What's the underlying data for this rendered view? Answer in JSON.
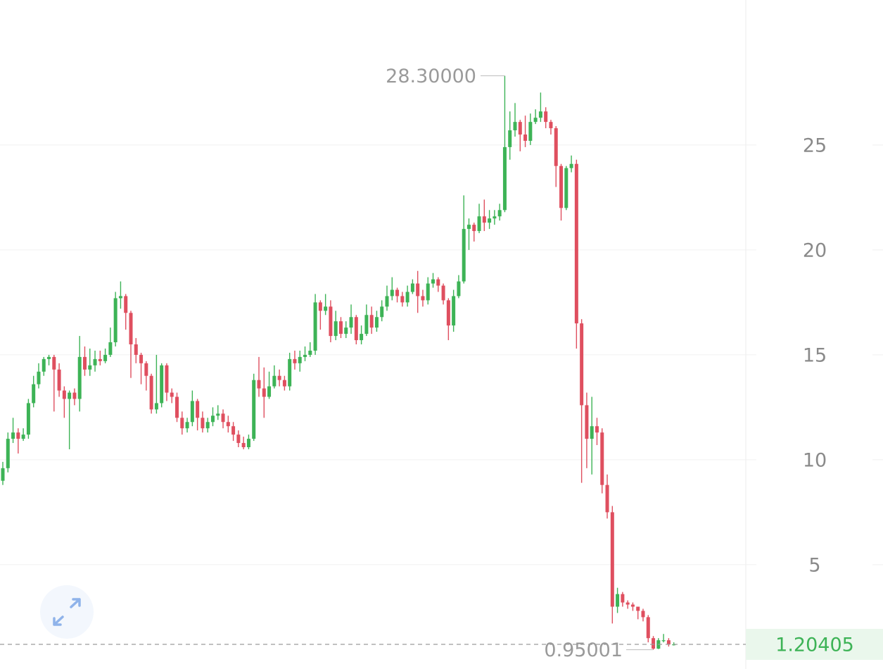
{
  "chart_data": {
    "type": "candlestick",
    "open": [
      9.0,
      9.6,
      11.0,
      11.3,
      11.0,
      11.2,
      12.7,
      13.6,
      14.2,
      14.8,
      14.9,
      14.3,
      13.3,
      12.9,
      13.2,
      12.9,
      14.9,
      14.3,
      14.5,
      14.8,
      14.7,
      15.0,
      15.6,
      17.7,
      17.8,
      17.0,
      15.5,
      15.0,
      14.6,
      14.0,
      12.4,
      12.7,
      14.5,
      13.2,
      13.0,
      12.0,
      11.5,
      11.8,
      12.8,
      12.0,
      11.5,
      11.8,
      12.1,
      12.2,
      11.8,
      11.6,
      11.2,
      10.8,
      10.6,
      11.0,
      13.8,
      13.4,
      13.0,
      13.5,
      14.0,
      13.8,
      13.5,
      14.8,
      14.6,
      14.9,
      15.0,
      15.2,
      17.5,
      17.1,
      17.3,
      15.9,
      16.6,
      16.0,
      16.3,
      16.8,
      15.7,
      16.0,
      16.9,
      16.3,
      16.8,
      17.3,
      17.8,
      18.1,
      17.8,
      17.5,
      18.0,
      18.4,
      17.8,
      17.6,
      18.4,
      18.6,
      18.3,
      17.6,
      16.4,
      17.8,
      18.5,
      21.0,
      21.2,
      20.9,
      21.6,
      21.3,
      21.5,
      21.6,
      21.9,
      24.9,
      25.7,
      26.1,
      25.5,
      25.2,
      26.1,
      26.3,
      26.6,
      26.1,
      25.8,
      24.0,
      22.0,
      23.9,
      24.1,
      16.5,
      12.6,
      11.0,
      11.6,
      11.3,
      8.8,
      7.5,
      3.0,
      3.6,
      3.2,
      3.1,
      3.0,
      2.8,
      2.5,
      1.5,
      1.0,
      1.4,
      1.4,
      1.2
    ],
    "high": [
      9.9,
      11.3,
      12.0,
      11.5,
      11.5,
      12.9,
      14.0,
      14.6,
      14.9,
      15.0,
      15.0,
      14.6,
      13.5,
      13.3,
      13.4,
      15.9,
      15.4,
      15.3,
      15.2,
      15.2,
      15.3,
      16.3,
      18.0,
      18.5,
      17.9,
      17.1,
      15.8,
      15.1,
      14.7,
      14.1,
      15.0,
      14.6,
      14.6,
      13.4,
      13.2,
      12.3,
      12.0,
      13.3,
      12.9,
      12.3,
      12.0,
      12.5,
      12.6,
      12.4,
      12.1,
      11.8,
      11.4,
      11.1,
      11.2,
      14.1,
      14.9,
      14.4,
      14.2,
      14.5,
      14.3,
      14.0,
      15.1,
      15.2,
      15.2,
      15.4,
      15.6,
      17.9,
      17.6,
      17.9,
      17.6,
      17.1,
      16.8,
      16.6,
      17.4,
      16.9,
      16.4,
      17.4,
      17.3,
      17.1,
      17.6,
      18.3,
      18.7,
      18.2,
      18.0,
      18.3,
      18.6,
      19.0,
      18.1,
      18.7,
      18.9,
      18.7,
      18.4,
      17.7,
      18.1,
      18.8,
      22.6,
      21.5,
      21.3,
      22.2,
      22.4,
      21.9,
      21.9,
      22.2,
      28.3,
      26.6,
      27.0,
      26.2,
      26.4,
      26.5,
      26.7,
      27.5,
      26.8,
      26.2,
      25.9,
      24.1,
      24.0,
      24.5,
      24.3,
      16.7,
      13.2,
      13.0,
      12.0,
      11.5,
      9.3,
      7.8,
      3.9,
      3.7,
      3.3,
      3.2,
      3.0,
      2.9,
      2.6,
      1.6,
      1.5,
      1.7,
      1.5,
      1.3
    ],
    "low": [
      8.8,
      9.4,
      10.8,
      10.3,
      10.9,
      11.0,
      12.5,
      13.4,
      14.0,
      14.5,
      12.3,
      13.0,
      12.0,
      10.5,
      12.6,
      12.3,
      14.0,
      14.0,
      14.2,
      14.5,
      14.6,
      14.9,
      15.4,
      17.2,
      16.2,
      13.9,
      14.6,
      13.6,
      13.3,
      12.2,
      12.2,
      12.5,
      12.8,
      12.7,
      11.8,
      11.2,
      11.3,
      11.6,
      11.4,
      11.3,
      11.3,
      11.6,
      11.9,
      11.5,
      11.3,
      10.9,
      10.6,
      10.5,
      10.5,
      10.9,
      13.0,
      12.0,
      12.9,
      13.4,
      13.5,
      13.3,
      13.3,
      14.3,
      14.2,
      14.7,
      14.9,
      15.0,
      16.2,
      16.9,
      15.6,
      15.7,
      15.8,
      15.8,
      16.0,
      15.5,
      15.5,
      15.9,
      16.0,
      16.1,
      16.6,
      17.1,
      17.6,
      17.5,
      17.3,
      17.3,
      17.9,
      17.0,
      17.3,
      17.4,
      18.2,
      18.0,
      17.4,
      15.7,
      16.1,
      17.7,
      18.4,
      20.0,
      20.4,
      20.8,
      20.9,
      21.0,
      21.2,
      21.4,
      21.8,
      24.3,
      25.4,
      24.7,
      24.9,
      25.0,
      26.0,
      26.1,
      25.8,
      25.5,
      23.0,
      21.4,
      21.9,
      23.7,
      15.3,
      8.9,
      9.6,
      9.3,
      10.7,
      8.4,
      7.2,
      2.2,
      2.7,
      3.0,
      2.9,
      2.8,
      2.4,
      2.3,
      1.3,
      0.95001,
      0.98,
      1.3,
      1.1,
      1.15
    ],
    "close": [
      9.6,
      11.0,
      11.3,
      11.0,
      11.2,
      12.7,
      13.6,
      14.2,
      14.8,
      14.9,
      14.3,
      13.3,
      12.9,
      13.2,
      12.9,
      14.9,
      14.3,
      14.5,
      14.8,
      14.7,
      15.0,
      15.6,
      17.7,
      17.8,
      17.0,
      15.5,
      15.0,
      14.6,
      14.0,
      12.4,
      12.7,
      14.5,
      13.2,
      13.0,
      12.0,
      11.5,
      11.8,
      12.8,
      12.0,
      11.5,
      11.8,
      12.1,
      12.2,
      11.8,
      11.6,
      11.2,
      10.8,
      10.6,
      11.0,
      13.8,
      13.4,
      13.0,
      13.5,
      14.0,
      13.8,
      13.5,
      14.8,
      14.6,
      14.9,
      15.0,
      15.2,
      17.5,
      17.1,
      17.3,
      15.9,
      16.6,
      16.0,
      16.3,
      16.8,
      15.7,
      16.0,
      16.9,
      16.3,
      16.8,
      17.3,
      17.8,
      18.1,
      17.8,
      17.5,
      18.0,
      18.4,
      17.8,
      17.6,
      18.4,
      18.6,
      18.3,
      17.6,
      16.4,
      17.8,
      18.5,
      21.0,
      21.2,
      20.9,
      21.6,
      21.3,
      21.5,
      21.6,
      21.9,
      24.9,
      25.7,
      26.1,
      25.5,
      25.2,
      26.1,
      26.3,
      26.6,
      26.1,
      25.8,
      24.0,
      22.0,
      23.9,
      24.1,
      16.5,
      12.6,
      11.0,
      11.6,
      11.3,
      8.8,
      7.5,
      3.0,
      3.6,
      3.2,
      3.1,
      3.0,
      2.8,
      2.5,
      1.5,
      1.0,
      1.4,
      1.4,
      1.2,
      1.20405
    ],
    "up_color": "#3db356",
    "down_color": "#df4f5f",
    "ylim": [
      0.03,
      31.91
    ],
    "yticks": [
      5,
      10,
      15,
      20,
      25
    ],
    "grid": true,
    "max_label": {
      "value": 28.3,
      "label": "28.30000"
    },
    "min_label": 0.95001
  }
}
